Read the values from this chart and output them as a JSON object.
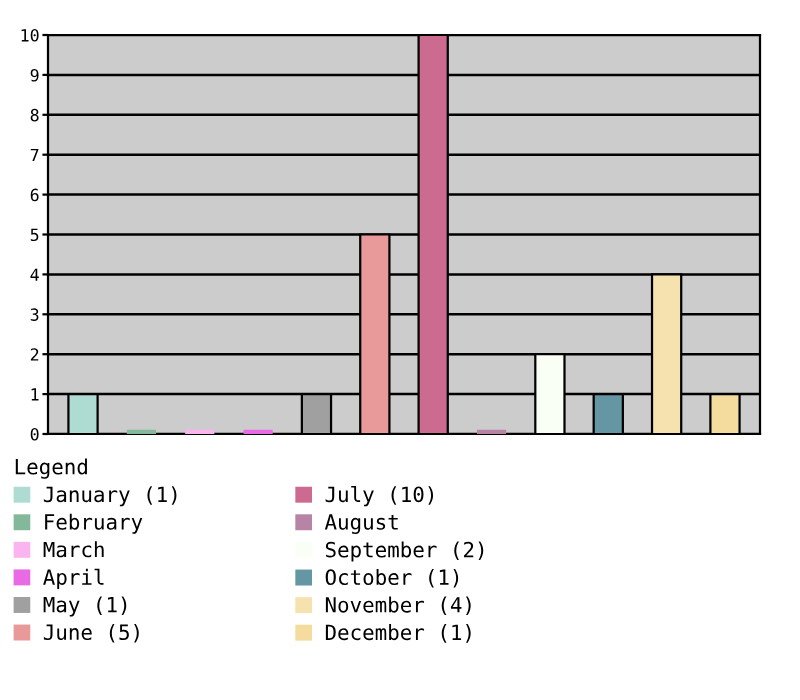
{
  "chart_data": {
    "type": "bar",
    "categories": [
      null,
      null,
      null,
      null,
      null,
      null,
      null,
      null,
      null,
      null,
      null,
      null
    ],
    "series": [
      {
        "name": "January (1)",
        "color": "#aedcd2",
        "values": [
          1,
          null,
          null,
          null,
          null,
          null,
          null,
          null,
          null,
          null,
          null,
          null
        ]
      },
      {
        "name": "February",
        "color": "#84b89a",
        "values": [
          null,
          0,
          null,
          null,
          null,
          null,
          null,
          null,
          null,
          null,
          null,
          null
        ]
      },
      {
        "name": "March",
        "color": "#fab4f0",
        "values": [
          null,
          null,
          0,
          null,
          null,
          null,
          null,
          null,
          null,
          null,
          null,
          null
        ]
      },
      {
        "name": "April",
        "color": "#e86ae4",
        "values": [
          null,
          null,
          null,
          0,
          null,
          null,
          null,
          null,
          null,
          null,
          null,
          null
        ]
      },
      {
        "name": "May (1)",
        "color": "#a0a0a0",
        "values": [
          null,
          null,
          null,
          null,
          1,
          null,
          null,
          null,
          null,
          null,
          null,
          null
        ]
      },
      {
        "name": "June (5)",
        "color": "#e89a9a",
        "values": [
          null,
          null,
          null,
          null,
          null,
          5,
          null,
          null,
          null,
          null,
          null,
          null
        ]
      },
      {
        "name": "July (10)",
        "color": "#cc6a90",
        "values": [
          null,
          null,
          null,
          null,
          null,
          null,
          10,
          null,
          null,
          null,
          null,
          null
        ]
      },
      {
        "name": "August",
        "color": "#b884a6",
        "values": [
          null,
          null,
          null,
          null,
          null,
          null,
          null,
          0,
          null,
          null,
          null,
          null
        ]
      },
      {
        "name": "September (2)",
        "color": "#fafff5",
        "values": [
          null,
          null,
          null,
          null,
          null,
          null,
          null,
          null,
          2,
          null,
          null,
          null
        ]
      },
      {
        "name": "October (1)",
        "color": "#6496a4",
        "values": [
          null,
          null,
          null,
          null,
          null,
          null,
          null,
          null,
          null,
          1,
          null,
          null
        ]
      },
      {
        "name": "November (4)",
        "color": "#f6e2ae",
        "values": [
          null,
          null,
          null,
          null,
          null,
          null,
          null,
          null,
          null,
          null,
          4,
          null
        ]
      },
      {
        "name": "December (1)",
        "color": "#f4dc9e",
        "values": [
          null,
          null,
          null,
          null,
          null,
          null,
          null,
          null,
          null,
          null,
          null,
          1
        ]
      }
    ],
    "ylim": [
      0,
      10
    ],
    "yticks": [
      0,
      1,
      2,
      3,
      4,
      5,
      6,
      7,
      8,
      9,
      10
    ],
    "grid": "y",
    "legend": "bottom",
    "legend_title": "Legend"
  }
}
